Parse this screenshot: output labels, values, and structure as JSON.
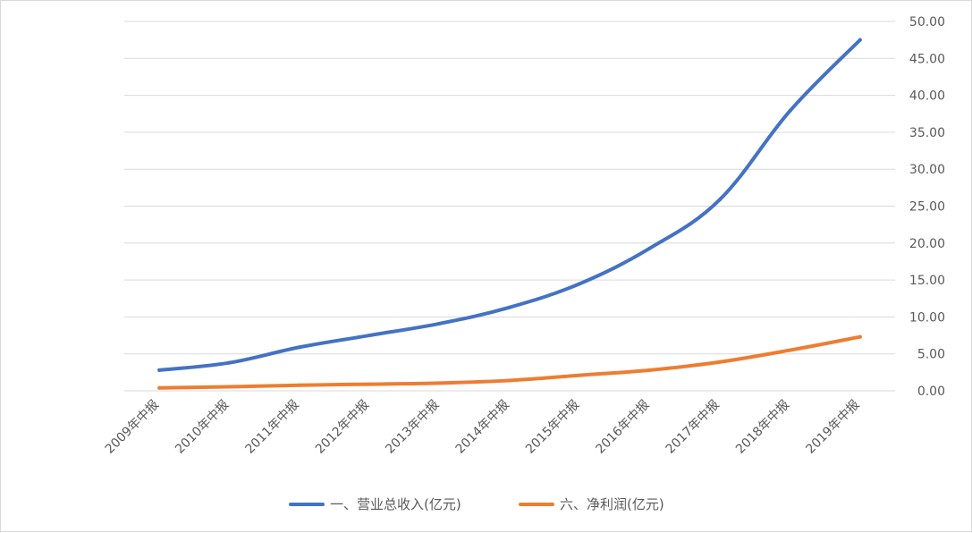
{
  "chart_data": {
    "type": "line",
    "title": "",
    "xlabel": "",
    "ylabel": "",
    "categories": [
      "2009年中报",
      "2010年中报",
      "2011年中报",
      "2012年中报",
      "2013年中报",
      "2014年中报",
      "2015年中报",
      "2016年中报",
      "2017年中报",
      "2018年中报",
      "2019年中报"
    ],
    "ylim": [
      0,
      50
    ],
    "yticks": [
      "0.00",
      "5.00",
      "10.00",
      "15.00",
      "20.00",
      "25.00",
      "30.00",
      "35.00",
      "40.00",
      "45.00",
      "50.00"
    ],
    "y_axis_side": "right",
    "grid": true,
    "legend_position": "bottom",
    "series": [
      {
        "name": "一、营业总收入(亿元)",
        "color": "#4472c4",
        "values": [
          2.8,
          3.8,
          5.9,
          7.5,
          9.1,
          11.3,
          14.5,
          19.3,
          25.9,
          37.9,
          47.5
        ]
      },
      {
        "name": "六、净利润(亿元)",
        "color": "#ed7d31",
        "values": [
          0.4,
          0.55,
          0.75,
          0.9,
          1.05,
          1.4,
          2.1,
          2.8,
          3.9,
          5.5,
          7.3
        ]
      }
    ]
  }
}
